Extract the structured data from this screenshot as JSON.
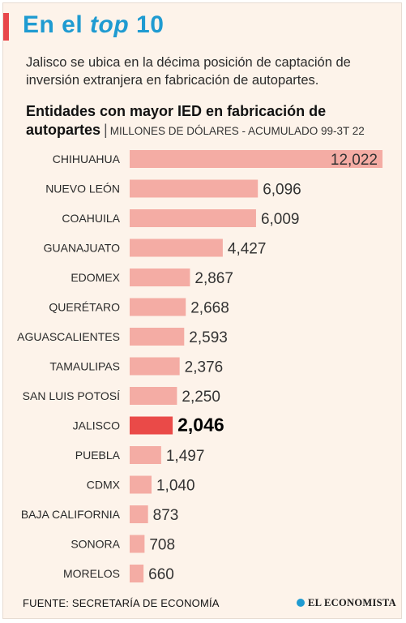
{
  "header": {
    "title_part1": "En el ",
    "title_em": "top",
    "title_part2": " 10",
    "subtitle": "Jalisco se ubica en la décima posición de captación de inversión extranjera en fabricación de autopartes."
  },
  "chart_title": {
    "main": "Entidades con mayor IED en fabricación de autopartes",
    "separator": "|",
    "units": "MILLONES DE DÓLARES - ACUMULADO 99-3T 22"
  },
  "chart_data": {
    "type": "bar",
    "orientation": "horizontal",
    "categories": [
      "CHIHUAHUA",
      "NUEVO LEÓN",
      "COAHUILA",
      "GUANAJUATO",
      "EDOMEX",
      "QUERÉTARO",
      "AGUASCALIENTES",
      "TAMAULIPAS",
      "SAN LUIS POTOSÍ",
      "JALISCO",
      "PUEBLA",
      "CDMX",
      "BAJA CALIFORNIA",
      "SONORA",
      "MORELOS"
    ],
    "values": [
      12022,
      6096,
      6009,
      4427,
      2867,
      2668,
      2593,
      2376,
      2250,
      2046,
      1497,
      1040,
      873,
      708,
      660
    ],
    "labels": [
      "12,022",
      "6,096",
      "6,009",
      "4,427",
      "2,867",
      "2,668",
      "2,593",
      "2,376",
      "2,250",
      "2,046",
      "1,497",
      "1,040",
      "873",
      "708",
      "660"
    ],
    "highlight": "JALISCO",
    "colors": {
      "bar": "#f4aca4",
      "highlight": "#ea4a48"
    },
    "xlim": [
      0,
      12022
    ],
    "grid": false,
    "legend": "none"
  },
  "footer": {
    "source": "FUENTE: SECRETARÍA DE ECONOMÍA",
    "brand": "EL ECONOMISTA"
  }
}
